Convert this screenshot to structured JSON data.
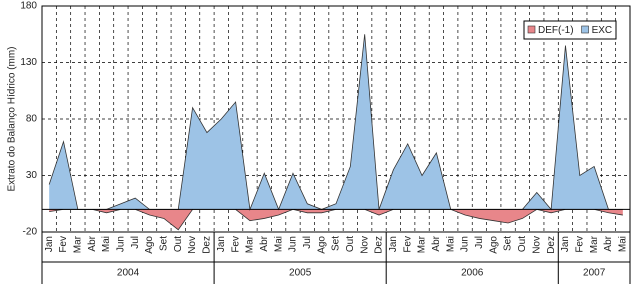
{
  "chart_data": {
    "type": "area",
    "y_label": "Extrato do Balanço Hídrico (mm)",
    "categories": [
      "Jan",
      "Fev",
      "Mar",
      "Abr",
      "Mai",
      "Jun",
      "Jul",
      "Ago",
      "Set",
      "Out",
      "Nov",
      "Dez",
      "Jan",
      "Fev",
      "Mar",
      "Abr",
      "Mai",
      "Jun",
      "Jul",
      "Ago",
      "Set",
      "Out",
      "Nov",
      "Dez",
      "Jan",
      "Fev",
      "Mar",
      "Abr",
      "Mai",
      "Jun",
      "Jul",
      "Ago",
      "Set",
      "Out",
      "Nov",
      "Dez",
      "Jan",
      "Fev",
      "Mar",
      "Abr",
      "Mai"
    ],
    "groups": [
      {
        "label": "2004",
        "span": 12
      },
      {
        "label": "2005",
        "span": 12
      },
      {
        "label": "2006",
        "span": 12
      },
      {
        "label": "2007",
        "span": 5
      }
    ],
    "series": [
      {
        "name": "DEF(-1)",
        "color": "#e8868a",
        "values": [
          -2,
          0,
          0,
          0,
          -3,
          0,
          0,
          -5,
          -8,
          -18,
          0,
          0,
          0,
          0,
          -10,
          -8,
          -5,
          0,
          -3,
          -3,
          0,
          0,
          0,
          -5,
          0,
          0,
          0,
          0,
          0,
          -5,
          -8,
          -10,
          -12,
          -8,
          0,
          -3,
          0,
          0,
          0,
          -3,
          -5
        ]
      },
      {
        "name": "EXC",
        "color": "#9dc3e6",
        "values": [
          22,
          60,
          0,
          0,
          0,
          5,
          10,
          0,
          0,
          0,
          90,
          68,
          80,
          95,
          0,
          32,
          0,
          32,
          5,
          0,
          5,
          38,
          155,
          0,
          35,
          58,
          30,
          50,
          0,
          0,
          0,
          0,
          0,
          0,
          15,
          0,
          145,
          30,
          38,
          0,
          0
        ]
      }
    ],
    "ylim": [
      -20,
      180
    ],
    "yticks": [
      -20,
      30,
      80,
      130,
      180
    ],
    "grid": true,
    "legend": "upper right"
  }
}
